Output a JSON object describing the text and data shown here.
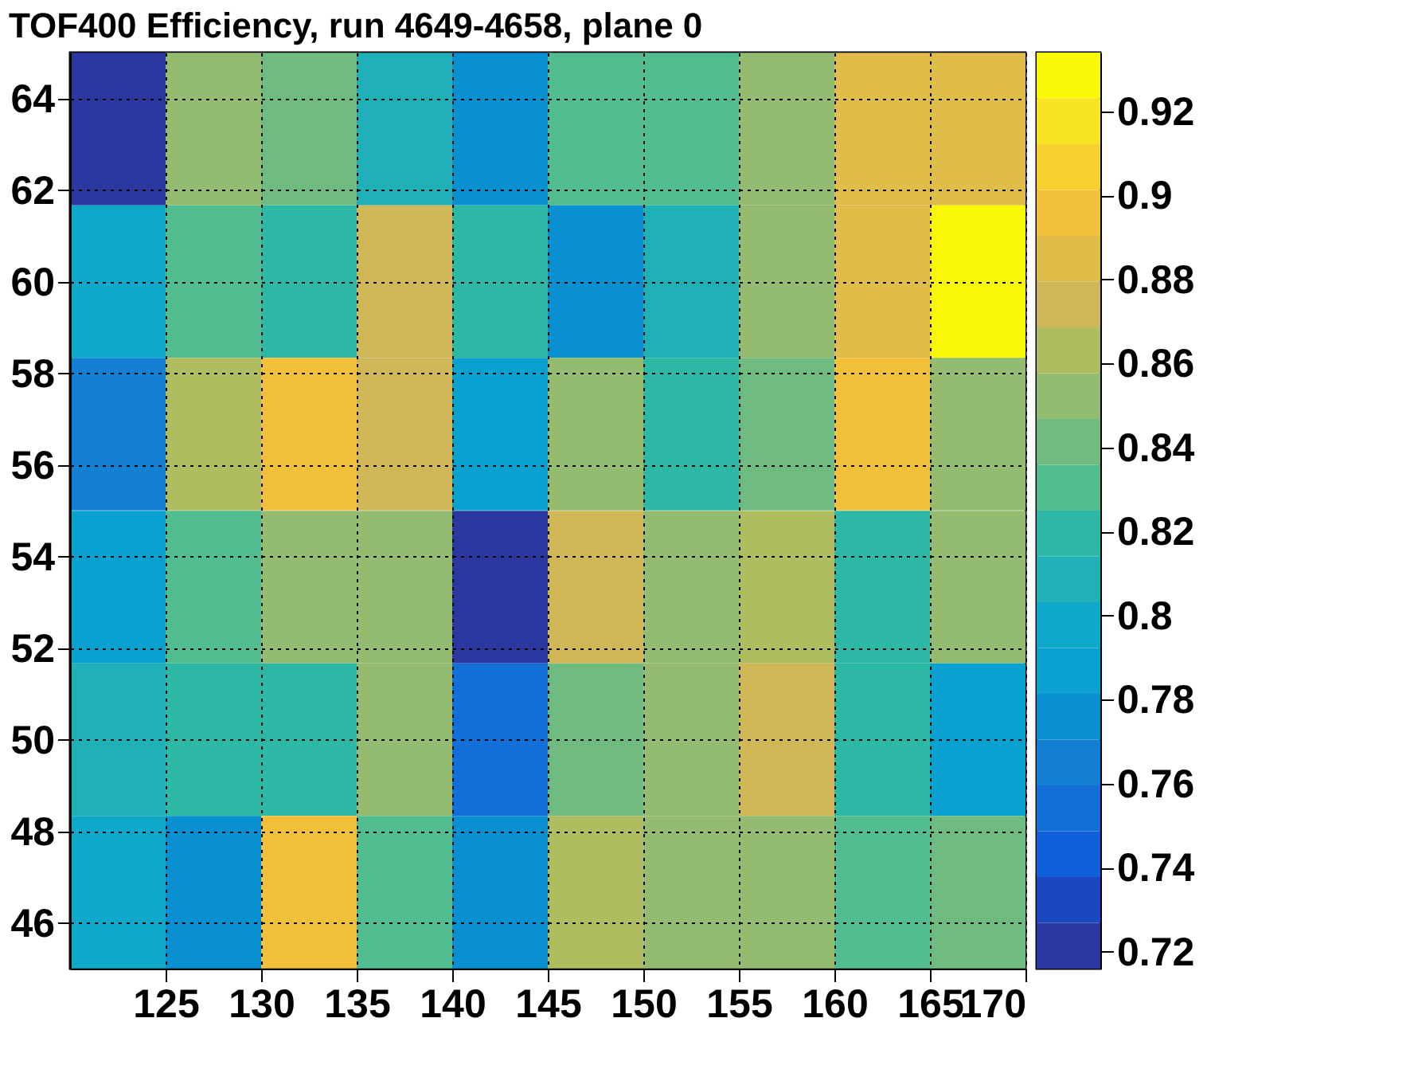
{
  "chart_data": {
    "type": "heatmap",
    "title": "TOF400 Efficiency, run 4649-4658, plane 0",
    "x": [
      122.5,
      127.5,
      132.5,
      137.5,
      142.5,
      147.5,
      152.5,
      157.5,
      162.5,
      167.5
    ],
    "y": [
      63.33,
      60,
      56.67,
      53.33,
      50,
      46.67
    ],
    "cells": [
      [
        0.72,
        0.85,
        0.84,
        0.81,
        0.775,
        0.83,
        0.83,
        0.85,
        0.885,
        0.885
      ],
      [
        0.8,
        0.83,
        0.82,
        0.875,
        0.82,
        0.775,
        0.81,
        0.85,
        0.885,
        0.93
      ],
      [
        0.765,
        0.865,
        0.895,
        0.875,
        0.785,
        0.85,
        0.82,
        0.84,
        0.895,
        0.85
      ],
      [
        0.785,
        0.83,
        0.85,
        0.85,
        0.72,
        0.875,
        0.85,
        0.865,
        0.82,
        0.85
      ],
      [
        0.81,
        0.82,
        0.82,
        0.85,
        0.755,
        0.84,
        0.85,
        0.875,
        0.82,
        0.785
      ],
      [
        0.8,
        0.775,
        0.895,
        0.83,
        0.775,
        0.865,
        0.85,
        0.85,
        0.83,
        0.84
      ]
    ],
    "xlim": [
      120,
      170
    ],
    "xticks": [
      125,
      130,
      135,
      140,
      145,
      150,
      155,
      160,
      165,
      170
    ],
    "ylim": [
      45,
      65
    ],
    "yticks": [
      46,
      48,
      50,
      52,
      54,
      56,
      58,
      60,
      62,
      64
    ],
    "clim": [
      0.716,
      0.934
    ],
    "cticks": [
      0.72,
      0.74,
      0.76,
      0.78,
      0.8,
      0.82,
      0.84,
      0.86,
      0.88,
      0.9,
      0.92
    ],
    "grid": true
  }
}
